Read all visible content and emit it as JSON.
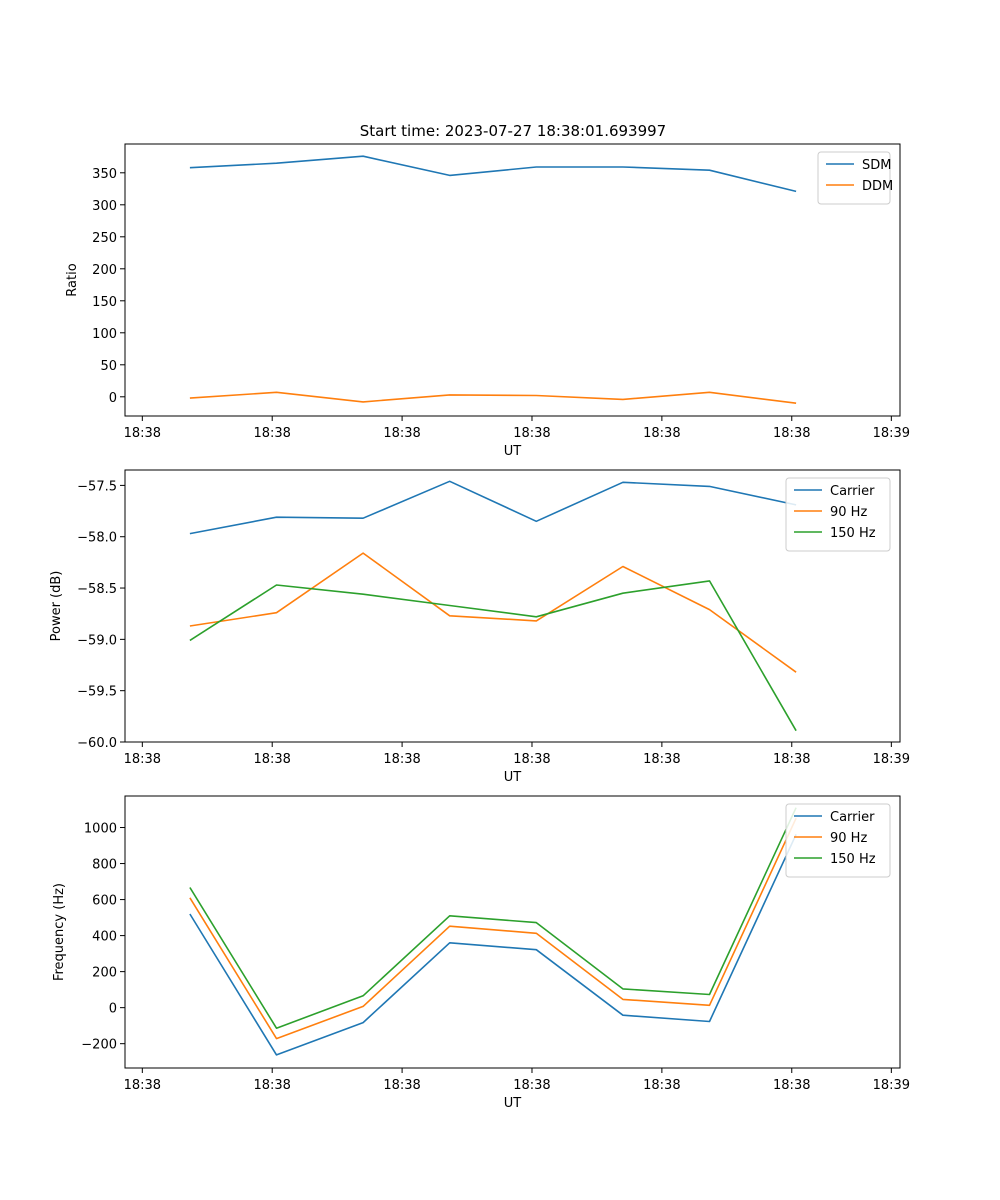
{
  "figure_title": "Start time: 2023-07-27 18:38:01.693997",
  "chart_data": [
    {
      "type": "line",
      "title": "Start time: 2023-07-27 18:38:01.693997",
      "xlabel": "UT",
      "ylabel": "Ratio",
      "x": [
        1,
        2,
        3,
        4,
        5,
        6,
        7,
        8
      ],
      "xlim": [
        0.25,
        9.2
      ],
      "xticks": [
        0.45,
        1.95,
        3.45,
        4.95,
        6.45,
        7.95,
        9.1
      ],
      "xtick_labels": [
        "18:38",
        "18:38",
        "18:38",
        "18:38",
        "18:38",
        "18:38",
        "18:39"
      ],
      "ylim": [
        -30,
        395
      ],
      "yticks": [
        0,
        50,
        100,
        150,
        200,
        250,
        300,
        350
      ],
      "ytick_labels": [
        "0",
        "50",
        "100",
        "150",
        "200",
        "250",
        "300",
        "350"
      ],
      "legend_position": "top-right",
      "series": [
        {
          "name": "SDM",
          "color": "#1f77b4",
          "values": [
            358,
            365,
            376,
            346,
            359,
            359,
            354,
            321
          ]
        },
        {
          "name": "DDM",
          "color": "#ff7f0e",
          "values": [
            -2,
            7,
            -8,
            3,
            2,
            -4,
            7,
            -10
          ]
        }
      ]
    },
    {
      "type": "line",
      "title": "",
      "xlabel": "UT",
      "ylabel": "Power (dB)",
      "x": [
        1,
        2,
        3,
        4,
        5,
        6,
        7,
        8
      ],
      "xlim": [
        0.25,
        9.2
      ],
      "xticks": [
        0.45,
        1.95,
        3.45,
        4.95,
        6.45,
        7.95,
        9.1
      ],
      "xtick_labels": [
        "18:38",
        "18:38",
        "18:38",
        "18:38",
        "18:38",
        "18:38",
        "18:39"
      ],
      "ylim": [
        -60.0,
        -57.35
      ],
      "yticks": [
        -60.0,
        -59.5,
        -59.0,
        -58.5,
        -58.0,
        -57.5
      ],
      "ytick_labels": [
        "−60.0",
        "−59.5",
        "−59.0",
        "−58.5",
        "−58.0",
        "−57.5"
      ],
      "legend_position": "top-right",
      "series": [
        {
          "name": "Carrier",
          "color": "#1f77b4",
          "values": [
            -57.97,
            -57.81,
            -57.82,
            -57.46,
            -57.85,
            -57.47,
            -57.51,
            -57.69
          ]
        },
        {
          "name": "90 Hz",
          "color": "#ff7f0e",
          "values": [
            -58.87,
            -58.74,
            -58.16,
            -58.77,
            -58.82,
            -58.29,
            -58.71,
            -59.32
          ]
        },
        {
          "name": "150 Hz",
          "color": "#2ca02c",
          "values": [
            -59.01,
            -58.47,
            -58.56,
            -58.67,
            -58.78,
            -58.55,
            -58.43,
            -59.89
          ]
        }
      ]
    },
    {
      "type": "line",
      "title": "",
      "xlabel": "UT",
      "ylabel": "Frequency (Hz)",
      "x": [
        1,
        2,
        3,
        4,
        5,
        6,
        7,
        8
      ],
      "xlim": [
        0.25,
        9.2
      ],
      "xticks": [
        0.45,
        1.95,
        3.45,
        4.95,
        6.45,
        7.95,
        9.1
      ],
      "xtick_labels": [
        "18:38",
        "18:38",
        "18:38",
        "18:38",
        "18:38",
        "18:38",
        "18:39"
      ],
      "ylim": [
        -335,
        1175
      ],
      "yticks": [
        -200,
        0,
        200,
        400,
        600,
        800,
        1000
      ],
      "ytick_labels": [
        "−200",
        "0",
        "200",
        "400",
        "600",
        "800",
        "1000"
      ],
      "legend_position": "top-right",
      "series": [
        {
          "name": "Carrier",
          "color": "#1f77b4",
          "values": [
            520,
            -262,
            -83,
            360,
            322,
            -42,
            -77,
            962
          ]
        },
        {
          "name": "90 Hz",
          "color": "#ff7f0e",
          "values": [
            610,
            -172,
            7,
            452,
            413,
            46,
            13,
            1052
          ]
        },
        {
          "name": "150 Hz",
          "color": "#2ca02c",
          "values": [
            667,
            -114,
            66,
            510,
            472,
            104,
            73,
            1110
          ]
        }
      ]
    }
  ]
}
